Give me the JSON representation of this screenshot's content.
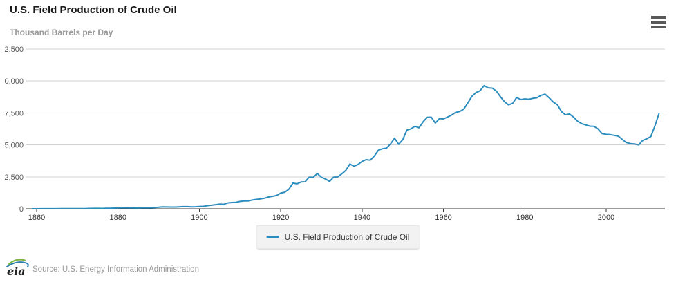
{
  "header": {
    "menu_icon": "hamburger-icon"
  },
  "footer": {
    "logo_text": "eia",
    "source": "Source: U.S. Energy Information Administration"
  },
  "colors": {
    "series_line": "#2b8cbe",
    "gridline": "#d0d0d0",
    "axis_line": "#333333",
    "axis_label": "#333333",
    "y_label": "#555555",
    "title": "#1a1a1a",
    "subtitle": "#999999",
    "legend_bg": "#f2f2f2",
    "logo_green": "#7fb541",
    "logo_blue": "#2e7fae"
  },
  "chart_data": {
    "type": "line",
    "title": "U.S. Field Production of Crude Oil",
    "ylabel": "Thousand Barrels per Day",
    "xlabel": "",
    "xlim": [
      1859,
      2013
    ],
    "ylim": [
      0,
      12500
    ],
    "grid": true,
    "legend_position": "bottom-center",
    "x_tick_values": [
      1860,
      1880,
      1900,
      1920,
      1940,
      1960,
      1980,
      2000
    ],
    "y_ticks": [
      {
        "value": 0,
        "label": "0"
      },
      {
        "value": 2500,
        "label": "2,500"
      },
      {
        "value": 5000,
        "label": "5,000"
      },
      {
        "value": 7500,
        "label": "7,500"
      },
      {
        "value": 10000,
        "label": "0,000"
      },
      {
        "value": 12500,
        "label": "2,500"
      }
    ],
    "y_tick_note": "top two labels (10,000 and 12,500) are clipped by the left viewport edge",
    "series": [
      {
        "name": "U.S. Field Production of Crude Oil",
        "color": "#2b8cbe",
        "points": [
          [
            1859,
            1
          ],
          [
            1860,
            1
          ],
          [
            1861,
            6
          ],
          [
            1862,
            8
          ],
          [
            1863,
            7
          ],
          [
            1864,
            6
          ],
          [
            1865,
            7
          ],
          [
            1866,
            10
          ],
          [
            1867,
            9
          ],
          [
            1868,
            10
          ],
          [
            1869,
            11
          ],
          [
            1870,
            14
          ],
          [
            1871,
            14
          ],
          [
            1872,
            17
          ],
          [
            1873,
            27
          ],
          [
            1874,
            30
          ],
          [
            1875,
            33
          ],
          [
            1876,
            25
          ],
          [
            1877,
            36
          ],
          [
            1878,
            42
          ],
          [
            1879,
            54
          ],
          [
            1880,
            72
          ],
          [
            1881,
            76
          ],
          [
            1882,
            83
          ],
          [
            1883,
            64
          ],
          [
            1884,
            66
          ],
          [
            1885,
            60
          ],
          [
            1886,
            77
          ],
          [
            1887,
            78
          ],
          [
            1888,
            76
          ],
          [
            1889,
            96
          ],
          [
            1890,
            126
          ],
          [
            1891,
            149
          ],
          [
            1892,
            138
          ],
          [
            1893,
            133
          ],
          [
            1894,
            135
          ],
          [
            1895,
            145
          ],
          [
            1896,
            167
          ],
          [
            1897,
            166
          ],
          [
            1898,
            152
          ],
          [
            1899,
            157
          ],
          [
            1900,
            174
          ],
          [
            1901,
            190
          ],
          [
            1902,
            243
          ],
          [
            1903,
            275
          ],
          [
            1904,
            320
          ],
          [
            1905,
            369
          ],
          [
            1906,
            347
          ],
          [
            1907,
            455
          ],
          [
            1908,
            488
          ],
          [
            1909,
            502
          ],
          [
            1910,
            574
          ],
          [
            1911,
            604
          ],
          [
            1912,
            609
          ],
          [
            1913,
            680
          ],
          [
            1914,
            728
          ],
          [
            1915,
            770
          ],
          [
            1916,
            822
          ],
          [
            1917,
            919
          ],
          [
            1918,
            974
          ],
          [
            1919,
            1037
          ],
          [
            1920,
            1221
          ],
          [
            1921,
            1294
          ],
          [
            1922,
            1527
          ],
          [
            1923,
            2007
          ],
          [
            1924,
            1956
          ],
          [
            1925,
            2092
          ],
          [
            1926,
            2112
          ],
          [
            1927,
            2477
          ],
          [
            1928,
            2463
          ],
          [
            1929,
            2760
          ],
          [
            1930,
            2460
          ],
          [
            1931,
            2332
          ],
          [
            1932,
            2145
          ],
          [
            1933,
            2481
          ],
          [
            1934,
            2488
          ],
          [
            1935,
            2730
          ],
          [
            1936,
            3001
          ],
          [
            1937,
            3500
          ],
          [
            1938,
            3330
          ],
          [
            1939,
            3466
          ],
          [
            1940,
            3707
          ],
          [
            1941,
            3842
          ],
          [
            1942,
            3799
          ],
          [
            1943,
            4125
          ],
          [
            1944,
            4584
          ],
          [
            1945,
            4695
          ],
          [
            1946,
            4751
          ],
          [
            1947,
            5088
          ],
          [
            1948,
            5520
          ],
          [
            1949,
            5046
          ],
          [
            1950,
            5407
          ],
          [
            1951,
            6158
          ],
          [
            1952,
            6256
          ],
          [
            1953,
            6458
          ],
          [
            1954,
            6342
          ],
          [
            1955,
            6807
          ],
          [
            1956,
            7151
          ],
          [
            1957,
            7170
          ],
          [
            1958,
            6710
          ],
          [
            1959,
            7054
          ],
          [
            1960,
            7035
          ],
          [
            1961,
            7183
          ],
          [
            1962,
            7332
          ],
          [
            1963,
            7542
          ],
          [
            1964,
            7614
          ],
          [
            1965,
            7804
          ],
          [
            1966,
            8295
          ],
          [
            1967,
            8810
          ],
          [
            1968,
            9096
          ],
          [
            1969,
            9238
          ],
          [
            1970,
            9637
          ],
          [
            1971,
            9463
          ],
          [
            1972,
            9441
          ],
          [
            1973,
            9208
          ],
          [
            1974,
            8774
          ],
          [
            1975,
            8375
          ],
          [
            1976,
            8132
          ],
          [
            1977,
            8245
          ],
          [
            1978,
            8707
          ],
          [
            1979,
            8552
          ],
          [
            1980,
            8597
          ],
          [
            1981,
            8572
          ],
          [
            1982,
            8649
          ],
          [
            1983,
            8688
          ],
          [
            1984,
            8879
          ],
          [
            1985,
            8971
          ],
          [
            1986,
            8680
          ],
          [
            1987,
            8349
          ],
          [
            1988,
            8140
          ],
          [
            1989,
            7613
          ],
          [
            1990,
            7355
          ],
          [
            1991,
            7417
          ],
          [
            1992,
            7171
          ],
          [
            1993,
            6847
          ],
          [
            1994,
            6662
          ],
          [
            1995,
            6560
          ],
          [
            1996,
            6465
          ],
          [
            1997,
            6452
          ],
          [
            1998,
            6252
          ],
          [
            1999,
            5881
          ],
          [
            2000,
            5822
          ],
          [
            2001,
            5801
          ],
          [
            2002,
            5746
          ],
          [
            2003,
            5681
          ],
          [
            2004,
            5419
          ],
          [
            2005,
            5178
          ],
          [
            2006,
            5102
          ],
          [
            2007,
            5064
          ],
          [
            2008,
            5000
          ],
          [
            2009,
            5353
          ],
          [
            2010,
            5479
          ],
          [
            2011,
            5653
          ],
          [
            2012,
            6497
          ],
          [
            2013,
            7461
          ]
        ]
      }
    ]
  }
}
